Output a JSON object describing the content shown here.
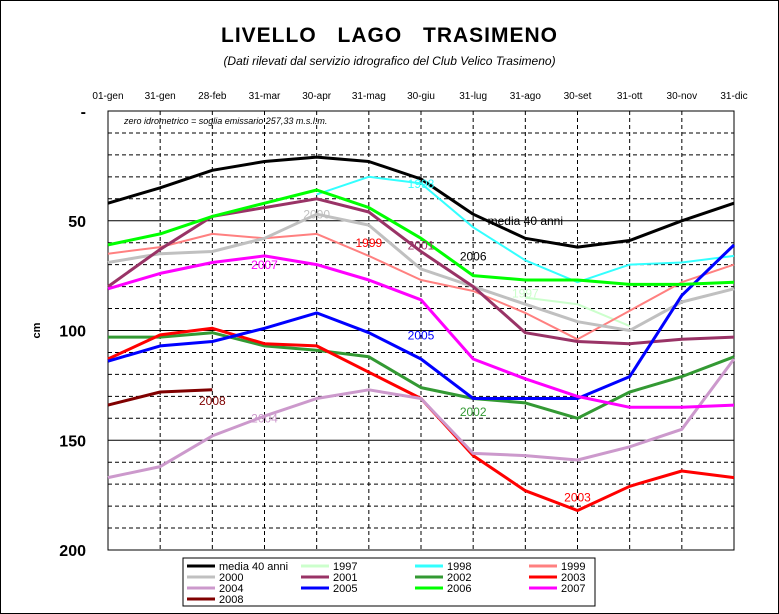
{
  "chart_data": {
    "type": "line",
    "title": "LIVELLO   LAGO   TRASIMENO",
    "subtitle": "(Dati rilevati dal servizio idrografico del Club Velico Trasimeno)",
    "note": "zero idrometrico = soglia emissario  257,33 m.s.l.m.",
    "ylabel": "cm",
    "ylim": [
      0,
      200
    ],
    "y_inverted": true,
    "yticks": [
      "-",
      "50",
      "100",
      "150",
      "200"
    ],
    "grid": true,
    "legend_position": "bottom",
    "categories": [
      "01-gen",
      "31-gen",
      "28-feb",
      "31-mar",
      "30-apr",
      "31-mag",
      "30-giu",
      "31-lug",
      "31-ago",
      "30-set",
      "31-ott",
      "30-nov",
      "31-dic"
    ],
    "series": [
      {
        "name": "media 40 anni",
        "color": "#000000",
        "width": 3,
        "values": [
          42,
          35,
          27,
          23,
          21,
          23,
          31,
          47,
          58,
          62,
          59,
          50,
          42
        ]
      },
      {
        "name": "1997",
        "color": "#ccffcc",
        "width": 2,
        "values": [
          null,
          null,
          null,
          null,
          null,
          null,
          null,
          null,
          85,
          88,
          98,
          null,
          null
        ]
      },
      {
        "name": "1998",
        "color": "#33ffff",
        "width": 2,
        "values": [
          null,
          null,
          null,
          null,
          38,
          30,
          33,
          53,
          68,
          78,
          70,
          69,
          66
        ]
      },
      {
        "name": "1999",
        "color": "#ff8080",
        "width": 2,
        "values": [
          65,
          62,
          56,
          58,
          56,
          66,
          77,
          82,
          92,
          104,
          91,
          78,
          70
        ]
      },
      {
        "name": "2000",
        "color": "#c0c0c0",
        "width": 3,
        "values": [
          69,
          65,
          64,
          58,
          47,
          52,
          72,
          80,
          88,
          96,
          100,
          87,
          81
        ]
      },
      {
        "name": "2001",
        "color": "#993366",
        "width": 3,
        "values": [
          80,
          63,
          48,
          44,
          40,
          46,
          64,
          80,
          101,
          105,
          106,
          104,
          103
        ]
      },
      {
        "name": "2002",
        "color": "#339933",
        "width": 3,
        "values": [
          103,
          103,
          101,
          107,
          109,
          112,
          126,
          131,
          133,
          140,
          128,
          121,
          112
        ]
      },
      {
        "name": "2003",
        "color": "#ff0000",
        "width": 3,
        "values": [
          113,
          102,
          99,
          106,
          107,
          119,
          131,
          157,
          173,
          182,
          171,
          164,
          167
        ]
      },
      {
        "name": "2004",
        "color": "#cc99cc",
        "width": 3,
        "values": [
          167,
          162,
          148,
          139,
          131,
          127,
          131,
          156,
          157,
          159,
          153,
          145,
          113
        ]
      },
      {
        "name": "2005",
        "color": "#0000ff",
        "width": 3,
        "values": [
          114,
          107,
          105,
          99,
          92,
          101,
          113,
          131,
          131,
          131,
          121,
          84,
          61
        ]
      },
      {
        "name": "2006",
        "color": "#00ff00",
        "width": 3,
        "values": [
          61,
          56,
          48,
          42,
          36,
          44,
          58,
          75,
          77,
          77,
          79,
          79,
          78
        ]
      },
      {
        "name": "2007",
        "color": "#ff00ff",
        "width": 3,
        "values": [
          81,
          74,
          69,
          66,
          70,
          77,
          86,
          113,
          122,
          130,
          135,
          135,
          134
        ]
      },
      {
        "name": "2008",
        "color": "#800000",
        "width": 3,
        "values": [
          134,
          128,
          127,
          null,
          null,
          null,
          null,
          null,
          null,
          null,
          null,
          null,
          null
        ]
      }
    ],
    "annotations": [
      {
        "text": "1998",
        "color": "#33ffff",
        "x": "30-giu",
        "y": 35
      },
      {
        "text": "media 40 anni",
        "color": "#000000",
        "x": "31-ago",
        "y": 52
      },
      {
        "text": "2000",
        "color": "#c0c0c0",
        "x": "30-apr",
        "y": 49
      },
      {
        "text": "1999",
        "color": "#ff0000",
        "x": "31-mag",
        "y": 62
      },
      {
        "text": "2001",
        "color": "#993366",
        "x": "30-giu",
        "y": 63
      },
      {
        "text": "2007",
        "color": "#ff00ff",
        "x": "31-mar",
        "y": 72
      },
      {
        "text": "2006",
        "color": "#000000",
        "x": "31-lug",
        "y": 68
      },
      {
        "text": "1997",
        "color": "#ccffcc",
        "x": "31-ago",
        "y": 85
      },
      {
        "text": "2005",
        "color": "#0000ff",
        "x": "30-giu",
        "y": 104
      },
      {
        "text": "2008",
        "color": "#800000",
        "x": "28-feb",
        "y": 134
      },
      {
        "text": "2004",
        "color": "#cc99cc",
        "x": "31-mar",
        "y": 142
      },
      {
        "text": "2002",
        "color": "#339933",
        "x": "31-lug",
        "y": 139
      },
      {
        "text": "2003",
        "color": "#ff0000",
        "x": "30-set",
        "y": 178
      }
    ]
  }
}
